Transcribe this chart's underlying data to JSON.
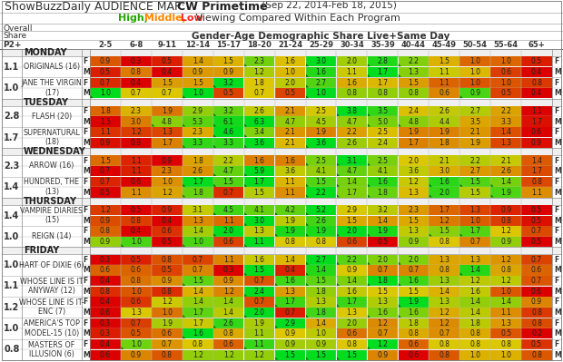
{
  "title_normal": "ShowBuzzDaily AUDIENCE MAP: ",
  "title_bold": "CW Primetime",
  "title_suffix": " (Sep 22, 2014‑Feb 18, 2015)",
  "age_groups": [
    "2-5",
    "6-8",
    "9-11",
    "12-14",
    "15-17",
    "18-20",
    "21-24",
    "25-29",
    "30-34",
    "35-39",
    "40-44",
    "45-49",
    "50-54",
    "55-64",
    "65+"
  ],
  "shows": [
    {
      "section": "MONDAY",
      "show": "ORIGINALS (16)",
      "show2": null,
      "rating": "1.1",
      "F": [
        0.9,
        0.3,
        0.5,
        1.4,
        1.5,
        2.3,
        1.6,
        3.0,
        2.0,
        2.8,
        2.2,
        1.5,
        1.0,
        1.0,
        0.5
      ],
      "M": [
        0.5,
        0.8,
        0.4,
        0.9,
        0.9,
        1.2,
        1.0,
        1.6,
        1.1,
        1.7,
        1.3,
        1.1,
        1.0,
        0.6,
        0.4
      ]
    },
    {
      "section": null,
      "show": "JANE THE VIRGIN",
      "show2": "(17)",
      "rating": "1.0",
      "F": [
        0.7,
        0.4,
        1.5,
        1.5,
        3.2,
        1.8,
        2.0,
        2.7,
        1.6,
        1.7,
        1.5,
        1.1,
        1.0,
        1.0,
        0.8
      ],
      "M": [
        1.0,
        0.7,
        0.7,
        1.0,
        0.5,
        0.7,
        0.5,
        1.0,
        0.8,
        0.8,
        0.8,
        0.6,
        0.9,
        0.5,
        0.4
      ]
    },
    {
      "section": "TUESDAY",
      "show": "FLASH (20)",
      "show2": null,
      "rating": "2.8",
      "F": [
        1.8,
        2.3,
        1.9,
        2.9,
        3.2,
        2.6,
        2.1,
        2.5,
        3.8,
        3.5,
        2.4,
        2.6,
        2.7,
        2.2,
        1.1
      ],
      "M": [
        1.5,
        3.0,
        4.8,
        5.3,
        6.1,
        6.3,
        4.7,
        4.5,
        4.7,
        5.0,
        4.8,
        4.4,
        3.5,
        3.3,
        1.7
      ]
    },
    {
      "section": null,
      "show": "SUPERNATURAL",
      "show2": "(18)",
      "rating": "1.7",
      "F": [
        1.1,
        1.2,
        1.3,
        2.3,
        4.6,
        3.4,
        2.1,
        1.9,
        2.2,
        2.5,
        1.9,
        1.9,
        2.1,
        1.4,
        0.6
      ],
      "M": [
        0.9,
        0.8,
        1.7,
        3.3,
        3.3,
        3.6,
        2.1,
        3.6,
        2.6,
        2.4,
        1.7,
        1.8,
        1.9,
        1.3,
        0.9
      ]
    },
    {
      "section": "WEDNESDAY",
      "show": "ARROW (16)",
      "show2": null,
      "rating": "2.3",
      "F": [
        1.5,
        1.1,
        0.9,
        1.8,
        2.2,
        1.6,
        1.6,
        2.5,
        3.1,
        2.5,
        2.0,
        2.1,
        2.2,
        2.1,
        1.4
      ],
      "M": [
        0.7,
        1.1,
        2.3,
        2.6,
        4.7,
        5.9,
        3.6,
        4.1,
        4.7,
        4.1,
        3.6,
        3.0,
        2.7,
        2.6,
        1.7
      ]
    },
    {
      "section": null,
      "show": "HUNDRED, THE",
      "show2": "(13)",
      "rating": "1.4",
      "F": [
        0.7,
        0.6,
        1.0,
        1.7,
        1.5,
        1.7,
        1.1,
        1.5,
        1.4,
        1.6,
        1.2,
        1.6,
        1.5,
        1.4,
        0.8
      ],
      "M": [
        0.5,
        1.1,
        1.2,
        1.8,
        0.7,
        1.5,
        1.1,
        2.2,
        1.7,
        1.8,
        1.3,
        2.0,
        1.5,
        1.9,
        1.1
      ]
    },
    {
      "section": "THURSDAY",
      "show": "VAMPIRE DIARIES",
      "show2": "(15)",
      "rating": "1.4",
      "F": [
        1.2,
        0.5,
        0.9,
        3.1,
        4.5,
        4.1,
        4.2,
        5.2,
        2.9,
        3.2,
        2.3,
        1.7,
        1.3,
        0.9,
        0.5
      ],
      "M": [
        0.9,
        0.8,
        0.4,
        1.3,
        1.1,
        3.0,
        1.9,
        2.6,
        1.5,
        1.4,
        1.5,
        1.2,
        1.0,
        0.8,
        0.5
      ]
    },
    {
      "section": null,
      "show": "REIGN (14)",
      "show2": null,
      "rating": "1.0",
      "F": [
        0.8,
        0.4,
        0.6,
        1.4,
        2.0,
        1.3,
        1.9,
        1.9,
        2.0,
        1.9,
        1.3,
        1.5,
        1.7,
        1.2,
        0.7
      ],
      "M": [
        0.9,
        1.0,
        0.5,
        1.0,
        0.6,
        1.1,
        0.8,
        0.8,
        0.6,
        0.5,
        0.9,
        0.8,
        0.7,
        0.9,
        0.5
      ]
    },
    {
      "section": "FRIDAY",
      "show": "HART OF DIXIE (6)",
      "show2": null,
      "rating": "1.0",
      "F": [
        0.3,
        0.5,
        0.8,
        0.7,
        1.1,
        1.6,
        1.4,
        2.7,
        2.2,
        2.0,
        2.0,
        1.3,
        1.3,
        1.2,
        0.7
      ],
      "M": [
        0.6,
        0.6,
        0.5,
        0.7,
        0.3,
        1.5,
        0.4,
        1.4,
        0.9,
        0.7,
        0.7,
        0.8,
        1.4,
        0.8,
        0.6
      ]
    },
    {
      "section": null,
      "show": "WHOSE LINE IS IT",
      "show2": "ANYWAY (12)",
      "rating": "1.1",
      "F": [
        0.4,
        0.8,
        0.9,
        1.5,
        0.9,
        0.7,
        1.6,
        1.5,
        1.4,
        1.8,
        1.6,
        1.3,
        1.2,
        1.2,
        0.7
      ],
      "M": [
        0.8,
        1.0,
        0.8,
        1.4,
        1.2,
        2.4,
        1.3,
        1.8,
        1.6,
        1.5,
        1.5,
        1.4,
        1.6,
        1.0,
        0.6
      ]
    },
    {
      "section": null,
      "show": "WHOSE LINE IS IT-",
      "show2": "ENC (7)",
      "rating": "1.2",
      "F": [
        0.4,
        0.6,
        1.2,
        1.4,
        1.4,
        0.7,
        1.7,
        1.3,
        1.7,
        1.3,
        1.9,
        1.3,
        1.4,
        1.4,
        0.9
      ],
      "M": [
        0.6,
        1.3,
        1.0,
        1.7,
        1.4,
        2.0,
        0.7,
        1.8,
        1.3,
        1.6,
        1.6,
        1.2,
        1.4,
        1.1,
        0.8
      ]
    },
    {
      "section": null,
      "show": "AMERICA'S TOP",
      "show2": "MODEL-15 (10)",
      "rating": "1.0",
      "F": [
        0.3,
        0.7,
        1.9,
        1.7,
        2.6,
        1.9,
        2.9,
        1.4,
        2.0,
        1.2,
        1.8,
        1.2,
        1.8,
        1.3,
        0.8
      ],
      "M": [
        0.3,
        0.5,
        0.6,
        1.6,
        0.8,
        1.1,
        0.9,
        1.0,
        0.6,
        0.7,
        0.8,
        0.7,
        0.8,
        0.5,
        0.2
      ]
    },
    {
      "section": null,
      "show": "MASTERS OF",
      "show2": "ILLUSION (6)",
      "rating": "0.8",
      "F": [
        0.4,
        1.0,
        0.7,
        0.8,
        0.6,
        1.1,
        0.9,
        0.9,
        0.8,
        1.2,
        0.6,
        0.8,
        0.8,
        0.8,
        0.5
      ],
      "M": [
        0.6,
        0.9,
        0.8,
        1.2,
        1.2,
        1.2,
        1.5,
        1.5,
        1.5,
        0.9,
        0.6,
        0.8,
        1.0,
        1.0,
        0.8
      ]
    }
  ]
}
